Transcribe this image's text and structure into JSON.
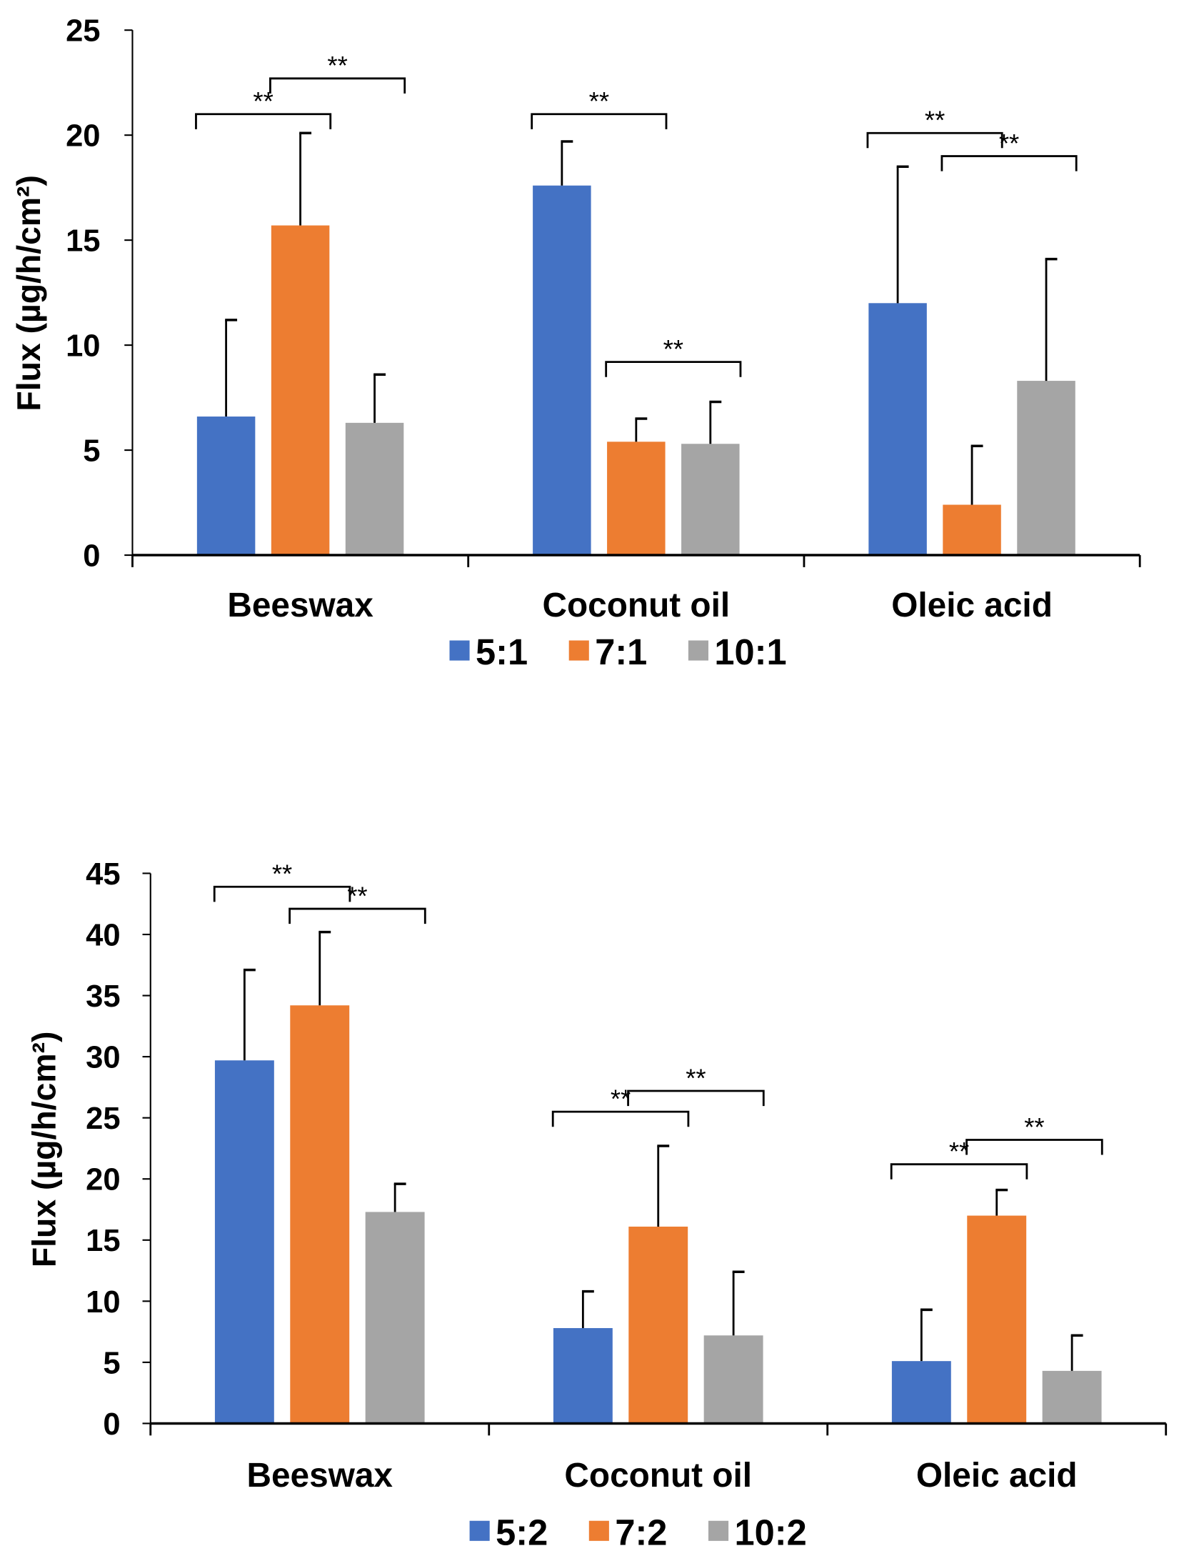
{
  "chart_data": [
    {
      "type": "bar",
      "title": "",
      "xlabel": "",
      "ylabel": "Flux (µg/h/cm²)",
      "ylim": [
        0,
        25
      ],
      "yticks": [
        "0",
        "5",
        "10",
        "15",
        "20",
        "25"
      ],
      "ytick_values": [
        0,
        5,
        10,
        15,
        20,
        25
      ],
      "categories": [
        "Beeswax",
        "Coconut oil",
        "Oleic acid"
      ],
      "legend_position": "bottom",
      "series": [
        {
          "name": "5:1",
          "color": "#4472C4",
          "values": [
            6.6,
            17.6,
            12.0
          ],
          "error": [
            4.6,
            2.1,
            6.5
          ]
        },
        {
          "name": "7:1",
          "color": "#ED7D31",
          "values": [
            15.7,
            5.4,
            2.4
          ],
          "error": [
            4.4,
            1.1,
            2.8
          ]
        },
        {
          "name": "10:1",
          "color": "#A5A5A5",
          "values": [
            6.3,
            5.3,
            8.3
          ],
          "error": [
            2.3,
            2.0,
            5.8
          ]
        }
      ],
      "significance": [
        {
          "category": 0,
          "from": 0,
          "to": 1,
          "y": 21.0,
          "label": "**"
        },
        {
          "category": 0,
          "from": 1,
          "to": 2,
          "y": 22.7,
          "label": "**"
        },
        {
          "category": 1,
          "from": 0,
          "to": 1,
          "y": 21.0,
          "label": "**"
        },
        {
          "category": 1,
          "from": 1,
          "to": 2,
          "y": 9.2,
          "label": "**"
        },
        {
          "category": 2,
          "from": 0,
          "to": 1,
          "y": 20.1,
          "label": "**"
        },
        {
          "category": 2,
          "from": 1,
          "to": 2,
          "y": 19.0,
          "label": "**"
        }
      ]
    },
    {
      "type": "bar",
      "title": "",
      "xlabel": "",
      "ylabel": "Flux (µg/h/cm²)",
      "ylim": [
        0,
        45
      ],
      "yticks": [
        "0",
        "5",
        "10",
        "15",
        "20",
        "25",
        "30",
        "35",
        "40",
        "45"
      ],
      "ytick_values": [
        0,
        5,
        10,
        15,
        20,
        25,
        30,
        35,
        40,
        45
      ],
      "categories": [
        "Beeswax",
        "Coconut oil",
        "Oleic acid"
      ],
      "legend_position": "bottom",
      "series": [
        {
          "name": "5:2",
          "color": "#4472C4",
          "values": [
            29.7,
            7.8,
            5.1
          ],
          "error": [
            7.4,
            3.0,
            4.2
          ]
        },
        {
          "name": "7:2",
          "color": "#ED7D31",
          "values": [
            34.2,
            16.1,
            17.0
          ],
          "error": [
            6.0,
            6.6,
            2.1
          ]
        },
        {
          "name": "10:2",
          "color": "#A5A5A5",
          "values": [
            17.3,
            7.2,
            4.3
          ],
          "error": [
            2.3,
            5.2,
            2.9
          ]
        }
      ],
      "significance": [
        {
          "category": 0,
          "from": 0,
          "to": 1,
          "y": 43.9,
          "label": "**"
        },
        {
          "category": 0,
          "from": 1,
          "to": 2,
          "y": 42.1,
          "label": "**"
        },
        {
          "category": 1,
          "from": 0,
          "to": 1,
          "y": 25.5,
          "label": "**"
        },
        {
          "category": 1,
          "from": 1,
          "to": 2,
          "y": 27.2,
          "label": "**"
        },
        {
          "category": 2,
          "from": 0,
          "to": 1,
          "y": 21.2,
          "label": "**"
        },
        {
          "category": 2,
          "from": 1,
          "to": 2,
          "y": 23.2,
          "label": "**"
        }
      ]
    }
  ]
}
